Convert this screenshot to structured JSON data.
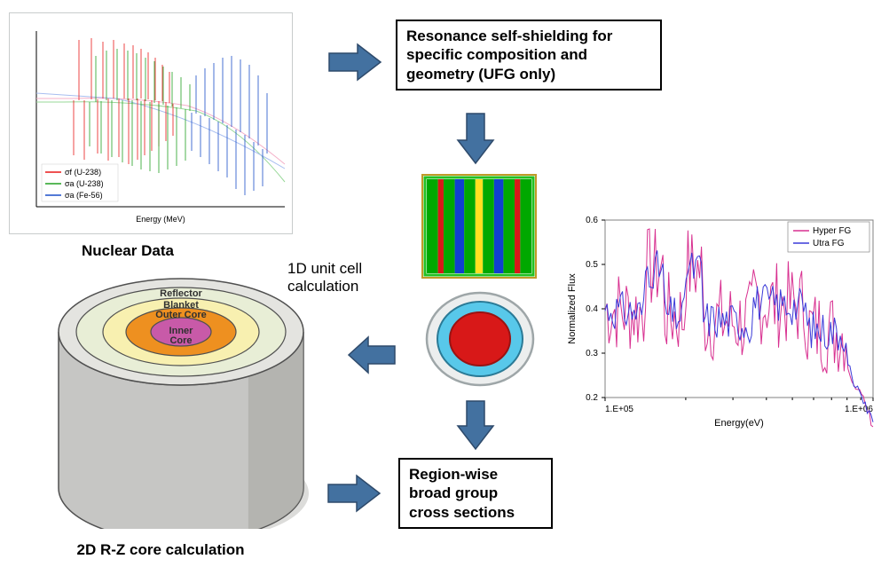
{
  "captions": {
    "nuclear_data": "Nuclear Data",
    "unit_cell": "1D unit cell calculation",
    "core_calc": "2D R-Z core calculation"
  },
  "boxes": {
    "resonance": "Resonance self-shielding for specific composition and geometry (UFG only)",
    "region": "Region-wise broad group cross sections"
  },
  "arrow_fill": "#4371a0",
  "arrow_stroke": "#2e4a6b",
  "nuclear_chart": {
    "bg": "#ffffff",
    "axis_color": "#000000",
    "legend": [
      {
        "label": "σf (U-238)",
        "color": "#e81818"
      },
      {
        "label": "σa (U-238)",
        "color": "#22a022"
      },
      {
        "label": "σa (Fe-56)",
        "color": "#1a4fc8"
      }
    ],
    "xlabel": "Energy (MeV)",
    "legend_fontsize": 9,
    "label_fontsize": 9,
    "red_color": "#e81818",
    "green_color": "#22a022",
    "blue_color": "#1a4fc8"
  },
  "flux_chart": {
    "bg": "#ffffff",
    "border": "#808080",
    "legend": [
      {
        "label": "Hyper FG",
        "color": "#d83090"
      },
      {
        "label": "Utra FG",
        "color": "#3a3ad8"
      }
    ],
    "xlabel": "Energy(eV)",
    "ylabel": "Normalized Flux",
    "xlim": [
      "1.E+05",
      "1.E+06"
    ],
    "ylim": [
      0.2,
      0.6
    ],
    "ytick_step": 0.1,
    "tick_fontsize": 10,
    "label_fontsize": 11,
    "legend_fontsize": 10,
    "magenta": "#d83090",
    "blue": "#3a3ad8"
  },
  "stripes": {
    "border_out": "#c09a28",
    "border_in": "#22c022",
    "colors": [
      "#00a800",
      "#d81818",
      "#00a800",
      "#1040d0",
      "#00a800",
      "#ffe020",
      "#00a800",
      "#1040d0",
      "#00a800",
      "#d81818",
      "#00a800"
    ],
    "widths": [
      12,
      6,
      12,
      10,
      12,
      8,
      12,
      10,
      12,
      6,
      12
    ]
  },
  "pin": {
    "outer_line": "#9ea6a8",
    "outer_fill": "#eceeee",
    "ring_fill": "#58c8ea",
    "ring_line": "#2a7a96",
    "inner_fill": "#d81818",
    "inner_line": "#9a1212"
  },
  "core": {
    "side_fill": "#c6c6c4",
    "side_shadow": "#a8a8a4",
    "top_fill": "#e4e4e0",
    "reflector_fill": "#e8eed6",
    "blanket_fill": "#f8f0b0",
    "outer_fill": "#ee9020",
    "inner_fill": "#c85aa8",
    "line": "#505050",
    "labels": {
      "reflector": "Reflector",
      "blanket": "Blanket",
      "outer": "Outer Core",
      "inner": "Inner Core"
    },
    "label_fontsize": 11
  }
}
